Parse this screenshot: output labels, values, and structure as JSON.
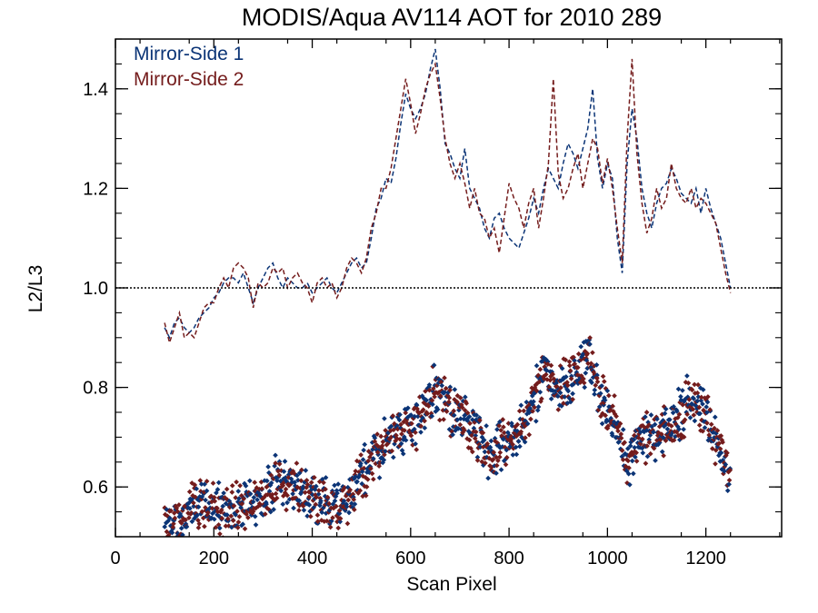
{
  "chart_data": {
    "type": "line",
    "title": "MODIS/Aqua AV114 AOT for 2010 289",
    "xlabel": "Scan Pixel",
    "ylabel": "L2/L3",
    "xlim": [
      0,
      1354
    ],
    "ylim": [
      0.5,
      1.5
    ],
    "x_ticks": [
      "0",
      "200",
      "400",
      "600",
      "800",
      "1000",
      "1200"
    ],
    "y_ticks": [
      "0.6",
      "0.8",
      "1.0",
      "1.2",
      "1.4"
    ],
    "reference_line": {
      "y": 1.0,
      "style": "dotted"
    },
    "legend_position": "top-left",
    "series": [
      {
        "name": "Mirror-Side 1",
        "color": "#0b3476",
        "style": "dashed",
        "points": [
          [
            100,
            0.92
          ],
          [
            110,
            0.9
          ],
          [
            120,
            0.93
          ],
          [
            130,
            0.94
          ],
          [
            140,
            0.92
          ],
          [
            150,
            0.91
          ],
          [
            160,
            0.92
          ],
          [
            170,
            0.94
          ],
          [
            180,
            0.95
          ],
          [
            190,
            0.96
          ],
          [
            200,
            0.98
          ],
          [
            210,
            0.99
          ],
          [
            220,
            1.01
          ],
          [
            230,
            1.02
          ],
          [
            240,
            1.02
          ],
          [
            250,
            1.01
          ],
          [
            260,
            1.03
          ],
          [
            270,
            1.0
          ],
          [
            280,
            0.97
          ],
          [
            290,
            1.0
          ],
          [
            300,
            1.02
          ],
          [
            310,
            1.04
          ],
          [
            320,
            1.05
          ],
          [
            330,
            1.02
          ],
          [
            340,
            1.0
          ],
          [
            350,
            1.02
          ],
          [
            360,
            1.01
          ],
          [
            370,
            1.0
          ],
          [
            380,
            1.0
          ],
          [
            390,
            1.01
          ],
          [
            400,
            0.99
          ],
          [
            410,
            1.0
          ],
          [
            420,
            1.01
          ],
          [
            430,
            1.02
          ],
          [
            440,
            1.0
          ],
          [
            450,
            0.99
          ],
          [
            460,
            1.01
          ],
          [
            470,
            1.03
          ],
          [
            480,
            1.05
          ],
          [
            490,
            1.06
          ],
          [
            500,
            1.04
          ],
          [
            510,
            1.05
          ],
          [
            520,
            1.1
          ],
          [
            530,
            1.16
          ],
          [
            540,
            1.18
          ],
          [
            550,
            1.22
          ],
          [
            560,
            1.21
          ],
          [
            570,
            1.26
          ],
          [
            580,
            1.33
          ],
          [
            590,
            1.39
          ],
          [
            600,
            1.36
          ],
          [
            610,
            1.34
          ],
          [
            620,
            1.36
          ],
          [
            630,
            1.39
          ],
          [
            640,
            1.44
          ],
          [
            650,
            1.48
          ],
          [
            660,
            1.4
          ],
          [
            670,
            1.29
          ],
          [
            680,
            1.27
          ],
          [
            690,
            1.24
          ],
          [
            700,
            1.22
          ],
          [
            710,
            1.28
          ],
          [
            720,
            1.2
          ],
          [
            730,
            1.18
          ],
          [
            740,
            1.16
          ],
          [
            750,
            1.12
          ],
          [
            760,
            1.1
          ],
          [
            770,
            1.14
          ],
          [
            780,
            1.15
          ],
          [
            790,
            1.12
          ],
          [
            800,
            1.1
          ],
          [
            810,
            1.09
          ],
          [
            820,
            1.08
          ],
          [
            830,
            1.11
          ],
          [
            840,
            1.14
          ],
          [
            850,
            1.18
          ],
          [
            860,
            1.15
          ],
          [
            870,
            1.2
          ],
          [
            880,
            1.24
          ],
          [
            890,
            1.22
          ],
          [
            900,
            1.2
          ],
          [
            910,
            1.25
          ],
          [
            920,
            1.29
          ],
          [
            930,
            1.27
          ],
          [
            940,
            1.24
          ],
          [
            950,
            1.28
          ],
          [
            960,
            1.32
          ],
          [
            970,
            1.4
          ],
          [
            980,
            1.26
          ],
          [
            990,
            1.2
          ],
          [
            1000,
            1.25
          ],
          [
            1010,
            1.22
          ],
          [
            1020,
            1.1
          ],
          [
            1030,
            1.03
          ],
          [
            1040,
            1.25
          ],
          [
            1050,
            1.36
          ],
          [
            1060,
            1.3
          ],
          [
            1070,
            1.2
          ],
          [
            1080,
            1.15
          ],
          [
            1090,
            1.12
          ],
          [
            1100,
            1.17
          ],
          [
            1110,
            1.2
          ],
          [
            1120,
            1.21
          ],
          [
            1130,
            1.24
          ],
          [
            1140,
            1.22
          ],
          [
            1150,
            1.19
          ],
          [
            1160,
            1.18
          ],
          [
            1170,
            1.17
          ],
          [
            1180,
            1.2
          ],
          [
            1190,
            1.15
          ],
          [
            1200,
            1.2
          ],
          [
            1210,
            1.16
          ],
          [
            1220,
            1.13
          ],
          [
            1230,
            1.1
          ],
          [
            1240,
            1.05
          ],
          [
            1250,
            1.0
          ]
        ]
      },
      {
        "name": "Mirror-Side 2",
        "color": "#741c1c",
        "style": "dashed",
        "points": [
          [
            100,
            0.93
          ],
          [
            110,
            0.89
          ],
          [
            120,
            0.92
          ],
          [
            130,
            0.95
          ],
          [
            140,
            0.9
          ],
          [
            150,
            0.91
          ],
          [
            160,
            0.9
          ],
          [
            170,
            0.93
          ],
          [
            180,
            0.96
          ],
          [
            190,
            0.97
          ],
          [
            200,
            0.97
          ],
          [
            210,
            1.0
          ],
          [
            220,
            1.02
          ],
          [
            230,
            1.0
          ],
          [
            240,
            1.04
          ],
          [
            250,
            1.05
          ],
          [
            260,
            1.04
          ],
          [
            270,
            1.02
          ],
          [
            280,
            0.96
          ],
          [
            290,
            1.01
          ],
          [
            300,
            1.0
          ],
          [
            310,
            1.01
          ],
          [
            320,
            1.04
          ],
          [
            330,
            1.03
          ],
          [
            340,
            1.04
          ],
          [
            350,
            1.0
          ],
          [
            360,
            1.02
          ],
          [
            370,
            1.03
          ],
          [
            380,
            1.01
          ],
          [
            390,
            1.0
          ],
          [
            400,
            0.97
          ],
          [
            410,
            1.01
          ],
          [
            420,
            1.02
          ],
          [
            430,
            1.0
          ],
          [
            440,
            1.01
          ],
          [
            450,
            0.98
          ],
          [
            460,
            1.0
          ],
          [
            470,
            1.04
          ],
          [
            480,
            1.06
          ],
          [
            490,
            1.05
          ],
          [
            500,
            1.03
          ],
          [
            510,
            1.06
          ],
          [
            520,
            1.12
          ],
          [
            530,
            1.15
          ],
          [
            540,
            1.2
          ],
          [
            550,
            1.2
          ],
          [
            560,
            1.24
          ],
          [
            570,
            1.3
          ],
          [
            580,
            1.36
          ],
          [
            590,
            1.42
          ],
          [
            600,
            1.37
          ],
          [
            610,
            1.31
          ],
          [
            620,
            1.35
          ],
          [
            630,
            1.4
          ],
          [
            640,
            1.43
          ],
          [
            650,
            1.45
          ],
          [
            660,
            1.38
          ],
          [
            670,
            1.3
          ],
          [
            680,
            1.25
          ],
          [
            690,
            1.22
          ],
          [
            700,
            1.25
          ],
          [
            710,
            1.21
          ],
          [
            720,
            1.16
          ],
          [
            730,
            1.2
          ],
          [
            740,
            1.15
          ],
          [
            750,
            1.14
          ],
          [
            760,
            1.1
          ],
          [
            770,
            1.12
          ],
          [
            780,
            1.07
          ],
          [
            790,
            1.14
          ],
          [
            800,
            1.21
          ],
          [
            810,
            1.18
          ],
          [
            820,
            1.16
          ],
          [
            830,
            1.12
          ],
          [
            840,
            1.17
          ],
          [
            850,
            1.2
          ],
          [
            860,
            1.12
          ],
          [
            870,
            1.18
          ],
          [
            880,
            1.25
          ],
          [
            890,
            1.42
          ],
          [
            900,
            1.23
          ],
          [
            910,
            1.18
          ],
          [
            920,
            1.2
          ],
          [
            930,
            1.24
          ],
          [
            940,
            1.27
          ],
          [
            950,
            1.2
          ],
          [
            960,
            1.25
          ],
          [
            970,
            1.3
          ],
          [
            980,
            1.28
          ],
          [
            990,
            1.21
          ],
          [
            1000,
            1.26
          ],
          [
            1010,
            1.2
          ],
          [
            1020,
            1.12
          ],
          [
            1030,
            1.05
          ],
          [
            1040,
            1.3
          ],
          [
            1050,
            1.46
          ],
          [
            1060,
            1.27
          ],
          [
            1070,
            1.17
          ],
          [
            1080,
            1.11
          ],
          [
            1090,
            1.14
          ],
          [
            1100,
            1.2
          ],
          [
            1110,
            1.16
          ],
          [
            1120,
            1.18
          ],
          [
            1130,
            1.25
          ],
          [
            1140,
            1.2
          ],
          [
            1150,
            1.18
          ],
          [
            1160,
            1.17
          ],
          [
            1170,
            1.2
          ],
          [
            1180,
            1.16
          ],
          [
            1190,
            1.18
          ],
          [
            1200,
            1.17
          ],
          [
            1210,
            1.15
          ],
          [
            1220,
            1.13
          ],
          [
            1230,
            1.08
          ],
          [
            1240,
            1.03
          ],
          [
            1250,
            0.99
          ]
        ]
      }
    ],
    "scatter": {
      "x_start": 100,
      "x_end": 1250,
      "step": 1.5,
      "trend": [
        [
          100,
          0.51
        ],
        [
          130,
          0.53
        ],
        [
          160,
          0.56
        ],
        [
          200,
          0.56
        ],
        [
          240,
          0.55
        ],
        [
          280,
          0.57
        ],
        [
          330,
          0.61
        ],
        [
          360,
          0.6
        ],
        [
          400,
          0.58
        ],
        [
          430,
          0.57
        ],
        [
          460,
          0.56
        ],
        [
          500,
          0.62
        ],
        [
          540,
          0.68
        ],
        [
          580,
          0.71
        ],
        [
          620,
          0.74
        ],
        [
          650,
          0.8
        ],
        [
          680,
          0.76
        ],
        [
          720,
          0.72
        ],
        [
          760,
          0.66
        ],
        [
          800,
          0.69
        ],
        [
          840,
          0.74
        ],
        [
          870,
          0.84
        ],
        [
          900,
          0.8
        ],
        [
          940,
          0.83
        ],
        [
          960,
          0.86
        ],
        [
          990,
          0.77
        ],
        [
          1020,
          0.72
        ],
        [
          1040,
          0.64
        ],
        [
          1060,
          0.7
        ],
        [
          1100,
          0.7
        ],
        [
          1140,
          0.73
        ],
        [
          1170,
          0.78
        ],
        [
          1200,
          0.75
        ],
        [
          1230,
          0.67
        ],
        [
          1250,
          0.61
        ]
      ],
      "spread": 0.045
    }
  }
}
